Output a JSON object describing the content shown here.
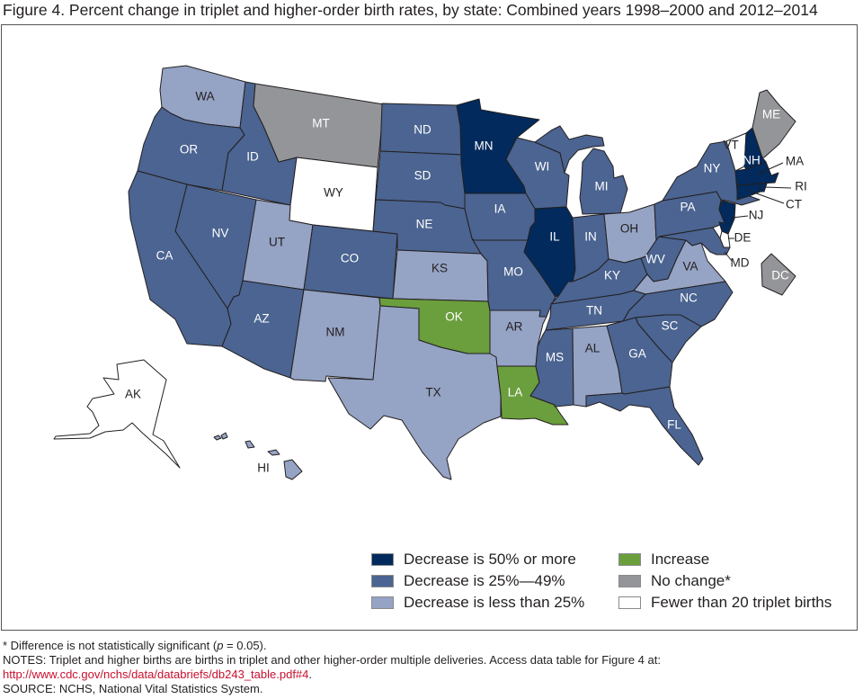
{
  "title": "Figure 4. Percent change in triplet and higher-order birth rates, by state: Combined years 1998–2000 and 2012–2014",
  "colors": {
    "dec50": "#022a5c",
    "dec25_49": "#4b6491",
    "dec_lt25": "#95a3c4",
    "increase": "#6b9e3d",
    "nochange": "#939598",
    "fewer20": "#ffffff"
  },
  "legend": [
    {
      "key": "dec50",
      "label": "Decrease is 50% or more"
    },
    {
      "key": "dec25_49",
      "label": "Decrease is 25%—49%"
    },
    {
      "key": "dec_lt25",
      "label": "Decrease is less than 25%"
    },
    {
      "key": "increase",
      "label": "Increase"
    },
    {
      "key": "nochange",
      "label": "No change*"
    },
    {
      "key": "fewer20",
      "label": "Fewer than 20 triplet births"
    }
  ],
  "states": [
    {
      "abbr": "WA",
      "category": "dec_lt25"
    },
    {
      "abbr": "OR",
      "category": "dec25_49"
    },
    {
      "abbr": "ID",
      "category": "dec25_49"
    },
    {
      "abbr": "MT",
      "category": "nochange"
    },
    {
      "abbr": "WY",
      "category": "fewer20"
    },
    {
      "abbr": "NV",
      "category": "dec25_49"
    },
    {
      "abbr": "CA",
      "category": "dec25_49"
    },
    {
      "abbr": "UT",
      "category": "dec_lt25"
    },
    {
      "abbr": "CO",
      "category": "dec25_49"
    },
    {
      "abbr": "AZ",
      "category": "dec25_49"
    },
    {
      "abbr": "NM",
      "category": "dec_lt25"
    },
    {
      "abbr": "ND",
      "category": "dec25_49"
    },
    {
      "abbr": "SD",
      "category": "dec25_49"
    },
    {
      "abbr": "NE",
      "category": "dec25_49"
    },
    {
      "abbr": "KS",
      "category": "dec_lt25"
    },
    {
      "abbr": "OK",
      "category": "increase"
    },
    {
      "abbr": "TX",
      "category": "dec_lt25"
    },
    {
      "abbr": "MN",
      "category": "dec50"
    },
    {
      "abbr": "IA",
      "category": "dec25_49"
    },
    {
      "abbr": "MO",
      "category": "dec25_49"
    },
    {
      "abbr": "AR",
      "category": "dec_lt25"
    },
    {
      "abbr": "LA",
      "category": "increase"
    },
    {
      "abbr": "WI",
      "category": "dec25_49"
    },
    {
      "abbr": "IL",
      "category": "dec50"
    },
    {
      "abbr": "MI",
      "category": "dec25_49"
    },
    {
      "abbr": "IN",
      "category": "dec25_49"
    },
    {
      "abbr": "OH",
      "category": "dec_lt25"
    },
    {
      "abbr": "KY",
      "category": "dec25_49"
    },
    {
      "abbr": "WV",
      "category": "dec25_49"
    },
    {
      "abbr": "VA",
      "category": "dec_lt25"
    },
    {
      "abbr": "TN",
      "category": "dec25_49"
    },
    {
      "abbr": "NC",
      "category": "dec25_49"
    },
    {
      "abbr": "MS",
      "category": "dec25_49"
    },
    {
      "abbr": "AL",
      "category": "dec_lt25"
    },
    {
      "abbr": "GA",
      "category": "dec25_49"
    },
    {
      "abbr": "SC",
      "category": "dec25_49"
    },
    {
      "abbr": "FL",
      "category": "dec25_49"
    },
    {
      "abbr": "PA",
      "category": "dec25_49"
    },
    {
      "abbr": "NY",
      "category": "dec25_49"
    },
    {
      "abbr": "VT",
      "category": "fewer20"
    },
    {
      "abbr": "NH",
      "category": "dec50"
    },
    {
      "abbr": "ME",
      "category": "nochange"
    },
    {
      "abbr": "MA",
      "category": "dec50"
    },
    {
      "abbr": "RI",
      "category": "dec50"
    },
    {
      "abbr": "CT",
      "category": "dec50"
    },
    {
      "abbr": "NJ",
      "category": "dec50"
    },
    {
      "abbr": "DE",
      "category": "fewer20"
    },
    {
      "abbr": "MD",
      "category": "dec25_49"
    },
    {
      "abbr": "DC",
      "category": "nochange"
    },
    {
      "abbr": "AK",
      "category": "fewer20"
    },
    {
      "abbr": "HI",
      "category": "dec_lt25"
    }
  ],
  "notes": {
    "footnote_prefix": "* Difference is not statistically significant (",
    "footnote_p": "p",
    "footnote_suffix": " = 0.05).",
    "notes_line": "NOTES: Triplet and higher births are births in triplet and other higher-order multiple deliveries. Access data table for Figure 4 at:",
    "link": "http://www.cdc.gov/nchs/data/databriefs/db243_table.pdf#4",
    "link_suffix": ".",
    "source": "SOURCE: NCHS, National Vital Statistics System."
  }
}
